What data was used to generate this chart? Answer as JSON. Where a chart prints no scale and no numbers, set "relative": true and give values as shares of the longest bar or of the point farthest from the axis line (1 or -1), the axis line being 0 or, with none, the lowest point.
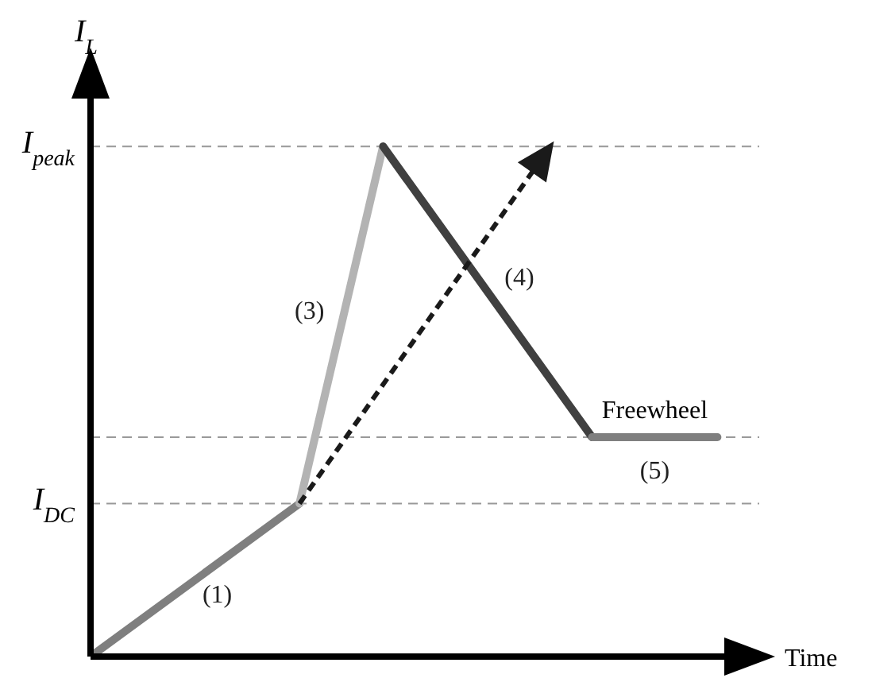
{
  "chart_data": {
    "type": "line",
    "relative": true,
    "ylabel": "I$_{L}$",
    "xlabel": "Time",
    "legend": false,
    "grid": false,
    "marker": "none",
    "categories": [
      null,
      null,
      null,
      null,
      null,
      null,
      null,
      null,
      null,
      null,
      null,
      null,
      null,
      null,
      null,
      null
    ],
    "series": [
      {
        "name": "(1)",
        "color": "#7f7f7f",
        "values": [
          0,
          null,
          null,
          null,
          null,
          0.3,
          null,
          null,
          null,
          null,
          null,
          null,
          null,
          null,
          null,
          null
        ]
      },
      {
        "name": "(3)",
        "color": "#b3b3b3",
        "values": [
          null,
          null,
          null,
          null,
          null,
          0.3,
          null,
          1,
          null,
          null,
          null,
          null,
          null,
          null,
          null,
          null
        ]
      },
      {
        "name": "(4)",
        "color": "#404040",
        "values": [
          null,
          null,
          null,
          null,
          null,
          null,
          null,
          1,
          null,
          null,
          null,
          null,
          0.43,
          null,
          null,
          null
        ]
      },
      {
        "name": "(5)",
        "color": "#7f7f7f",
        "values": [
          null,
          null,
          null,
          null,
          null,
          null,
          null,
          null,
          null,
          null,
          null,
          null,
          0.43,
          null,
          null,
          0.43
        ]
      }
    ],
    "ref_lines": [
      {
        "axis": "y",
        "value": 0.3,
        "label": "I$_{DC}$",
        "color": "#999999",
        "line_style": "dashed"
      },
      {
        "axis": "y",
        "value": 0.43,
        "label": null,
        "color": "#999999",
        "line_style": "dashed"
      },
      {
        "axis": "y",
        "value": 1,
        "label": "I$_{peak}$",
        "color": "#999999",
        "line_style": "dashed"
      }
    ],
    "annotations": [
      "Freewheel"
    ]
  }
}
